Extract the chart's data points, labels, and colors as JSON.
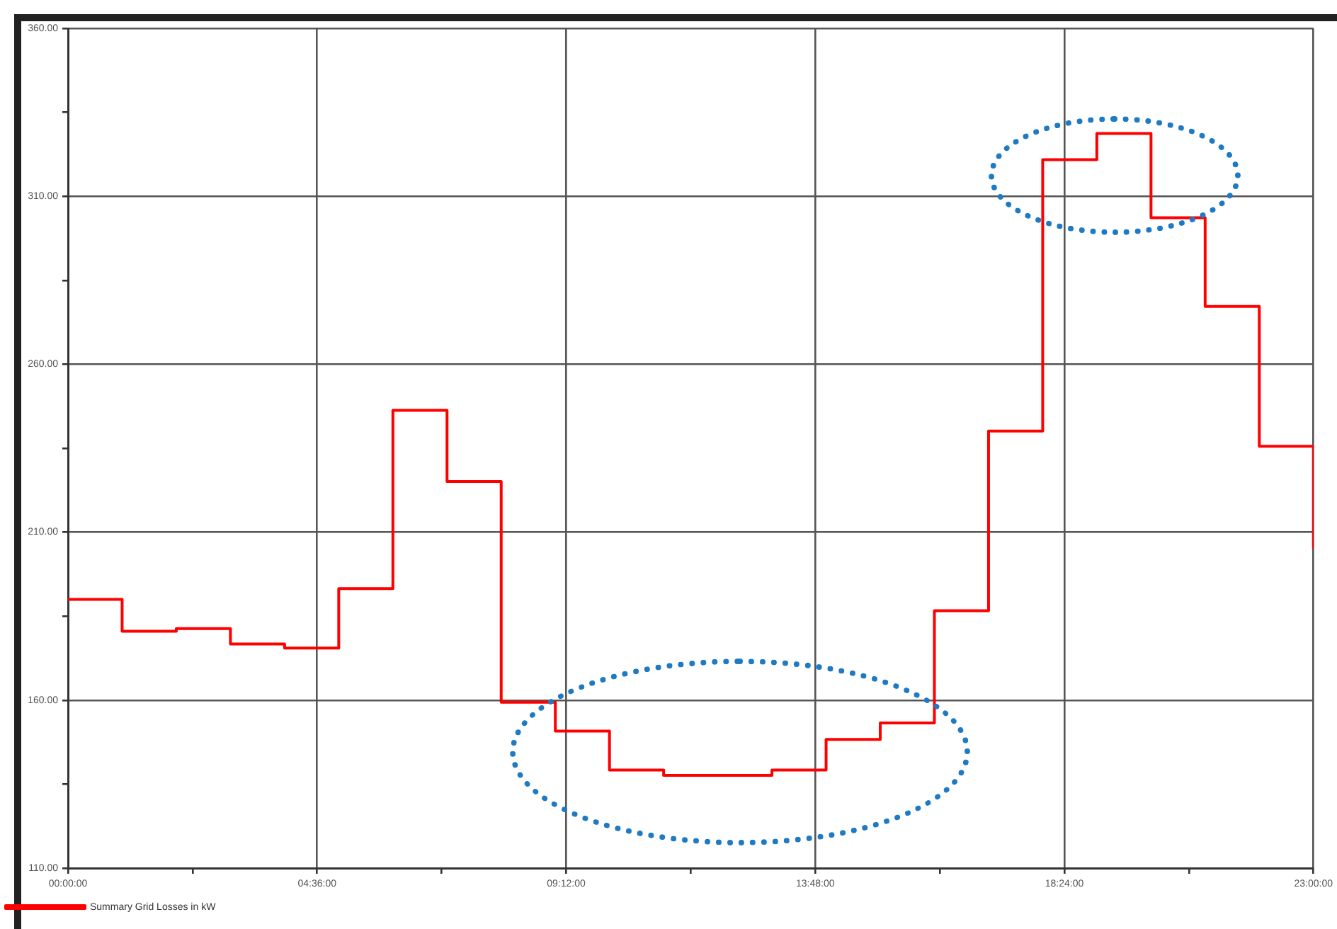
{
  "chart_data": {
    "type": "step",
    "x": [
      0,
      1,
      2,
      3,
      4,
      5,
      6,
      7,
      8,
      9,
      10,
      11,
      12,
      13,
      14,
      15,
      16,
      17,
      18,
      19,
      20,
      21,
      22,
      23
    ],
    "series": [
      {
        "name": "Summary Grid Losses in kW",
        "color": "#ff0000",
        "values": [
          190,
          180.5,
          181.3,
          176.7,
          175.5,
          193.2,
          246.3,
          225.1,
          159.4,
          150.8,
          139.2,
          137.6,
          137.6,
          139.2,
          148.3,
          153.2,
          186.6,
          240.1,
          320.9,
          328.7,
          303.6,
          277.2,
          235.6,
          205.1
        ]
      }
    ],
    "xlim": [
      0,
      23
    ],
    "xticks": [
      {
        "value": 0,
        "label": "00:00:00"
      },
      {
        "value": 2.3,
        "label": null
      },
      {
        "value": 4.6,
        "label": "04:36:00"
      },
      {
        "value": 6.9,
        "label": null
      },
      {
        "value": 9.2,
        "label": "09:12:00"
      },
      {
        "value": 11.5,
        "label": null
      },
      {
        "value": 13.8,
        "label": "13:48:00"
      },
      {
        "value": 16.1,
        "label": null
      },
      {
        "value": 18.4,
        "label": "18:24:00"
      },
      {
        "value": 20.7,
        "label": null
      },
      {
        "value": 23,
        "label": "23:00:00"
      }
    ],
    "ylim": [
      110,
      360
    ],
    "yticks": [
      {
        "value": 110,
        "label": "110.00"
      },
      {
        "value": 135,
        "label": null
      },
      {
        "value": 160,
        "label": "160.00"
      },
      {
        "value": 185,
        "label": null
      },
      {
        "value": 210,
        "label": "210.00"
      },
      {
        "value": 235,
        "label": null
      },
      {
        "value": 260,
        "label": "260.00"
      },
      {
        "value": 285,
        "label": null
      },
      {
        "value": 310,
        "label": "310.00"
      },
      {
        "value": 335,
        "label": null
      },
      {
        "value": 360,
        "label": "360.00"
      }
    ],
    "grid": true,
    "legend": "bottom left",
    "line_style": "solid",
    "marker": "none"
  }
}
